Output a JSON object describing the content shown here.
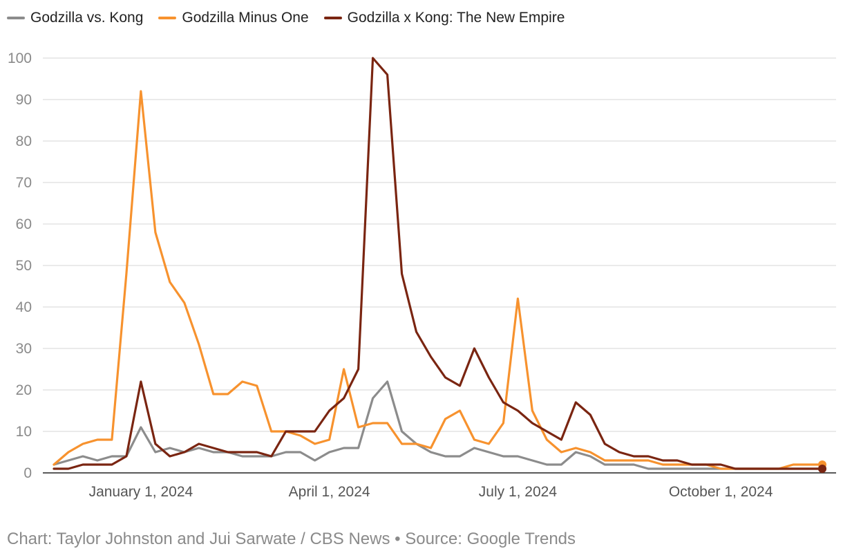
{
  "chart_data": {
    "type": "line",
    "title": "",
    "xlabel": "",
    "ylabel": "",
    "ylim": [
      0,
      100
    ],
    "yticks": [
      0,
      10,
      20,
      30,
      40,
      50,
      60,
      70,
      80,
      90,
      100
    ],
    "grid": true,
    "legend_position": "top-left",
    "x_tick_labels": [
      {
        "label": "January 1, 2024",
        "week_index": 6
      },
      {
        "label": "April 1, 2024",
        "week_index": 19
      },
      {
        "label": "July 1, 2024",
        "week_index": 32
      },
      {
        "label": "October 1, 2024",
        "week_index": 46
      }
    ],
    "series": [
      {
        "name": "Godzilla vs. Kong",
        "color": "#8c8c8c",
        "values": [
          2,
          3,
          4,
          3,
          4,
          4,
          11,
          5,
          6,
          5,
          6,
          5,
          5,
          4,
          4,
          4,
          5,
          5,
          3,
          5,
          6,
          6,
          18,
          22,
          10,
          7,
          5,
          4,
          4,
          6,
          5,
          4,
          4,
          3,
          2,
          2,
          5,
          4,
          2,
          2,
          2,
          1,
          1,
          1,
          1,
          1,
          1,
          1,
          1,
          1,
          1,
          1,
          1,
          1
        ]
      },
      {
        "name": "Godzilla Minus One",
        "color": "#f7922e",
        "values": [
          2,
          5,
          7,
          8,
          8,
          48,
          92,
          58,
          46,
          41,
          31,
          19,
          19,
          22,
          21,
          10,
          10,
          9,
          7,
          8,
          25,
          11,
          12,
          12,
          7,
          7,
          6,
          13,
          15,
          8,
          7,
          12,
          42,
          15,
          8,
          5,
          6,
          5,
          3,
          3,
          3,
          3,
          2,
          2,
          2,
          2,
          1,
          1,
          1,
          1,
          1,
          2,
          2,
          2
        ]
      },
      {
        "name": "Godzilla x Kong: The New Empire",
        "color": "#7a2511",
        "values": [
          1,
          1,
          2,
          2,
          2,
          4,
          22,
          7,
          4,
          5,
          7,
          6,
          5,
          5,
          5,
          4,
          10,
          10,
          10,
          15,
          18,
          25,
          100,
          96,
          48,
          34,
          28,
          23,
          21,
          30,
          23,
          17,
          15,
          12,
          10,
          8,
          17,
          14,
          7,
          5,
          4,
          4,
          3,
          3,
          2,
          2,
          2,
          1,
          1,
          1,
          1,
          1,
          1,
          1
        ]
      }
    ]
  },
  "credit": "Chart: Taylor Johnston and Jui Sarwate / CBS News • Source: Google Trends"
}
